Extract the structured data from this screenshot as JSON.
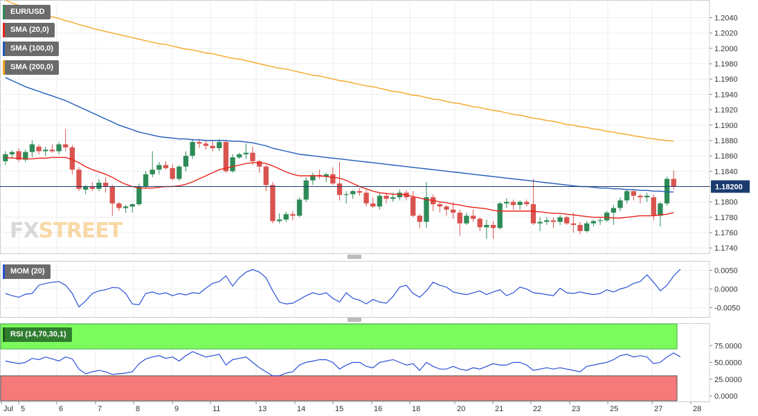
{
  "chart_data": {
    "type": "candlestick",
    "title": "EUR/USD",
    "ylim": [
      1.1733,
      1.2063
    ],
    "y_ticks": [
      "1.1740",
      "1.1760",
      "1.1780",
      "1.1800",
      "1.1820",
      "1.1840",
      "1.1860",
      "1.1880",
      "1.1900",
      "1.1920",
      "1.1940",
      "1.1960",
      "1.1980",
      "1.2000",
      "1.2020",
      "1.2040"
    ],
    "current_price": "1.18200",
    "x_tick_labels": [
      "Jul",
      "5",
      "6",
      "7",
      "8",
      "9",
      "11",
      "13",
      "14",
      "15",
      "16",
      "18",
      "20",
      "21",
      "22",
      "23",
      "25",
      "27",
      "28"
    ],
    "candles": [
      [
        1.1853,
        1.1866,
        1.1848,
        1.1862
      ],
      [
        1.1862,
        1.1867,
        1.1857,
        1.1865
      ],
      [
        1.1866,
        1.187,
        1.1852,
        1.1855
      ],
      [
        1.1855,
        1.1868,
        1.1852,
        1.1865
      ],
      [
        1.1865,
        1.188,
        1.1858,
        1.1875
      ],
      [
        1.1872,
        1.1875,
        1.1862,
        1.1866
      ],
      [
        1.1866,
        1.1872,
        1.186,
        1.1868
      ],
      [
        1.1868,
        1.1875,
        1.1864,
        1.1866
      ],
      [
        1.1866,
        1.1878,
        1.1862,
        1.1875
      ],
      [
        1.1875,
        1.1895,
        1.1866,
        1.1871
      ],
      [
        1.1871,
        1.1874,
        1.1836,
        1.1842
      ],
      [
        1.1842,
        1.1845,
        1.1814,
        1.1817
      ],
      [
        1.1816,
        1.1822,
        1.181,
        1.182
      ],
      [
        1.182,
        1.1826,
        1.1814,
        1.1817
      ],
      [
        1.1817,
        1.183,
        1.1814,
        1.1825
      ],
      [
        1.1825,
        1.1832,
        1.1812,
        1.182
      ],
      [
        1.182,
        1.1822,
        1.1782,
        1.1798
      ],
      [
        1.1798,
        1.18,
        1.1788,
        1.1792
      ],
      [
        1.1792,
        1.1796,
        1.1786,
        1.1794
      ],
      [
        1.1794,
        1.1798,
        1.1786,
        1.1797
      ],
      [
        1.1797,
        1.1824,
        1.1795,
        1.182
      ],
      [
        1.182,
        1.184,
        1.1817,
        1.1836
      ],
      [
        1.1836,
        1.1866,
        1.1832,
        1.1842
      ],
      [
        1.1842,
        1.1852,
        1.1836,
        1.1848
      ],
      [
        1.1848,
        1.1853,
        1.1842,
        1.1844
      ],
      [
        1.1844,
        1.1849,
        1.1828,
        1.183
      ],
      [
        1.183,
        1.1848,
        1.1827,
        1.1846
      ],
      [
        1.1846,
        1.1866,
        1.184,
        1.186
      ],
      [
        1.186,
        1.1882,
        1.1856,
        1.1878
      ],
      [
        1.1878,
        1.1882,
        1.187,
        1.1876
      ],
      [
        1.1876,
        1.188,
        1.1868,
        1.1873
      ],
      [
        1.1873,
        1.188,
        1.1866,
        1.187
      ],
      [
        1.187,
        1.1882,
        1.1866,
        1.1878
      ],
      [
        1.1878,
        1.188,
        1.1838,
        1.184
      ],
      [
        1.184,
        1.1862,
        1.1838,
        1.1858
      ],
      [
        1.1858,
        1.1864,
        1.1856,
        1.1862
      ],
      [
        1.1862,
        1.1876,
        1.1856,
        1.1864
      ],
      [
        1.1864,
        1.1872,
        1.1848,
        1.1853
      ],
      [
        1.1853,
        1.1855,
        1.1838,
        1.1846
      ],
      [
        1.1846,
        1.1848,
        1.1814,
        1.1822
      ],
      [
        1.1822,
        1.1826,
        1.1772,
        1.1775
      ],
      [
        1.1775,
        1.1785,
        1.1772,
        1.1777
      ],
      [
        1.1777,
        1.1787,
        1.1774,
        1.1784
      ],
      [
        1.1784,
        1.1788,
        1.1776,
        1.1782
      ],
      [
        1.1782,
        1.1806,
        1.178,
        1.1803
      ],
      [
        1.1803,
        1.1832,
        1.18,
        1.1828
      ],
      [
        1.1828,
        1.1838,
        1.1822,
        1.1835
      ],
      [
        1.1835,
        1.1842,
        1.183,
        1.1833
      ],
      [
        1.1833,
        1.1838,
        1.1826,
        1.1836
      ],
      [
        1.1836,
        1.1845,
        1.1822,
        1.1824
      ],
      [
        1.1824,
        1.1852,
        1.1802,
        1.1809
      ],
      [
        1.1809,
        1.1814,
        1.1798,
        1.181
      ],
      [
        1.181,
        1.1816,
        1.1804,
        1.1814
      ],
      [
        1.1814,
        1.1818,
        1.1808,
        1.1812
      ],
      [
        1.1812,
        1.1816,
        1.1794,
        1.1798
      ],
      [
        1.1798,
        1.1806,
        1.1792,
        1.1794
      ],
      [
        1.1794,
        1.1812,
        1.179,
        1.1808
      ],
      [
        1.1808,
        1.1812,
        1.1798,
        1.1804
      ],
      [
        1.1804,
        1.1812,
        1.18,
        1.1806
      ],
      [
        1.1806,
        1.1816,
        1.1802,
        1.1812
      ],
      [
        1.1812,
        1.1815,
        1.1802,
        1.1806
      ],
      [
        1.1806,
        1.1814,
        1.178,
        1.1782
      ],
      [
        1.1782,
        1.1784,
        1.1766,
        1.1774
      ],
      [
        1.1774,
        1.1826,
        1.1766,
        1.1806
      ],
      [
        1.1806,
        1.181,
        1.1788,
        1.1797
      ],
      [
        1.1797,
        1.18,
        1.1786,
        1.1794
      ],
      [
        1.1794,
        1.1796,
        1.1782,
        1.179
      ],
      [
        1.179,
        1.18,
        1.1778,
        1.1786
      ],
      [
        1.1786,
        1.179,
        1.1756,
        1.1772
      ],
      [
        1.1772,
        1.1786,
        1.177,
        1.1782
      ],
      [
        1.1782,
        1.179,
        1.1774,
        1.1778
      ],
      [
        1.1778,
        1.178,
        1.1762,
        1.1767
      ],
      [
        1.1767,
        1.1777,
        1.1752,
        1.177
      ],
      [
        1.177,
        1.1775,
        1.1752,
        1.1766
      ],
      [
        1.1766,
        1.18,
        1.1764,
        1.1798
      ],
      [
        1.1798,
        1.1805,
        1.1792,
        1.18
      ],
      [
        1.18,
        1.1803,
        1.179,
        1.1796
      ],
      [
        1.1796,
        1.1802,
        1.179,
        1.18
      ],
      [
        1.18,
        1.1803,
        1.1794,
        1.1797
      ],
      [
        1.1797,
        1.183,
        1.177,
        1.1772
      ],
      [
        1.1772,
        1.178,
        1.1762,
        1.1774
      ],
      [
        1.1774,
        1.178,
        1.177,
        1.1776
      ],
      [
        1.1776,
        1.178,
        1.1766,
        1.1774
      ],
      [
        1.1774,
        1.1783,
        1.177,
        1.178
      ],
      [
        1.178,
        1.1782,
        1.177,
        1.1772
      ],
      [
        1.1772,
        1.1786,
        1.176,
        1.177
      ],
      [
        1.177,
        1.1774,
        1.1758,
        1.1762
      ],
      [
        1.1762,
        1.1775,
        1.176,
        1.1772
      ],
      [
        1.1772,
        1.1777,
        1.1768,
        1.1775
      ],
      [
        1.1775,
        1.178,
        1.177,
        1.1776
      ],
      [
        1.1776,
        1.1788,
        1.1774,
        1.1786
      ],
      [
        1.1786,
        1.1796,
        1.177,
        1.1792
      ],
      [
        1.1792,
        1.1806,
        1.1788,
        1.1802
      ],
      [
        1.1802,
        1.1817,
        1.1798,
        1.1814
      ],
      [
        1.1814,
        1.1816,
        1.1802,
        1.1808
      ],
      [
        1.1808,
        1.181,
        1.1798,
        1.1806
      ],
      [
        1.1806,
        1.1812,
        1.18,
        1.1808
      ],
      [
        1.1806,
        1.181,
        1.1776,
        1.1782
      ],
      [
        1.1782,
        1.18,
        1.1768,
        1.1798
      ],
      [
        1.1798,
        1.1833,
        1.1795,
        1.183
      ],
      [
        1.183,
        1.1841,
        1.1816,
        1.182
      ]
    ],
    "series": [
      {
        "name": "SMA (20,0)",
        "values": [
          1.1858,
          1.1857,
          1.1857,
          1.1856,
          1.1856,
          1.1857,
          1.1857,
          1.1858,
          1.1858,
          1.1858,
          1.1855,
          1.1851,
          1.1846,
          1.1842,
          1.1839,
          1.1836,
          1.1832,
          1.1827,
          1.1823,
          1.182,
          1.1818,
          1.1818,
          1.1818,
          1.1819,
          1.182,
          1.182,
          1.1821,
          1.1823,
          1.1826,
          1.183,
          1.1834,
          1.1838,
          1.1842,
          1.1844,
          1.1846,
          1.1848,
          1.185,
          1.1851,
          1.1851,
          1.185,
          1.1847,
          1.1843,
          1.1839,
          1.1836,
          1.1834,
          1.1834,
          1.1834,
          1.1834,
          1.1833,
          1.1832,
          1.1831,
          1.1828,
          1.1824,
          1.182,
          1.1817,
          1.1814,
          1.1812,
          1.1811,
          1.181,
          1.181,
          1.1809,
          1.1807,
          1.1805,
          1.1803,
          1.1802,
          1.18,
          1.1799,
          1.1797,
          1.1796,
          1.1794,
          1.1793,
          1.1792,
          1.1791,
          1.1789,
          1.1788,
          1.1788,
          1.1788,
          1.1788,
          1.1788,
          1.1788,
          1.1787,
          1.1786,
          1.1785,
          1.1785,
          1.1784,
          1.1783,
          1.1782,
          1.1781,
          1.178,
          1.178,
          1.178,
          1.1779,
          1.1779,
          1.178,
          1.1781,
          1.1782,
          1.1782,
          1.1782,
          1.1783,
          1.1784,
          1.1786
        ]
      },
      {
        "name": "SMA (100,0)",
        "values": [
          1.1962,
          1.1958,
          1.1954,
          1.195,
          1.1947,
          1.1944,
          1.1941,
          1.1938,
          1.1935,
          1.1932,
          1.1928,
          1.1924,
          1.192,
          1.1916,
          1.1912,
          1.1908,
          1.1904,
          1.19,
          1.1897,
          1.1894,
          1.1891,
          1.1889,
          1.1887,
          1.1885,
          1.1884,
          1.1883,
          1.1882,
          1.1882,
          1.1881,
          1.1881,
          1.188,
          1.188,
          1.188,
          1.188,
          1.1879,
          1.1879,
          1.1878,
          1.1877,
          1.1875,
          1.1873,
          1.187,
          1.1868,
          1.1866,
          1.1864,
          1.1862,
          1.1861,
          1.186,
          1.1859,
          1.1858,
          1.1857,
          1.1856,
          1.1855,
          1.1854,
          1.1853,
          1.1852,
          1.1851,
          1.185,
          1.1849,
          1.1848,
          1.1847,
          1.1846,
          1.1845,
          1.1844,
          1.1843,
          1.1842,
          1.1841,
          1.184,
          1.1839,
          1.1838,
          1.1837,
          1.1836,
          1.1835,
          1.1834,
          1.1833,
          1.1832,
          1.1831,
          1.183,
          1.1829,
          1.1828,
          1.1827,
          1.1826,
          1.1825,
          1.1824,
          1.1823,
          1.1822,
          1.1821,
          1.182,
          1.182,
          1.1819,
          1.1818,
          1.1818,
          1.1817,
          1.1817,
          1.1816,
          1.1816,
          1.1815,
          1.1815,
          1.1814,
          1.1814,
          1.1813,
          1.1813
        ]
      },
      {
        "name": "SMA (200,0)",
        "values": [
          1.2063,
          1.2059,
          1.2056,
          1.2053,
          1.205,
          1.2047,
          1.2044,
          1.2041,
          1.2039,
          1.2036,
          1.2034,
          1.2031,
          1.2029,
          1.2026,
          1.2024,
          1.2022,
          1.202,
          1.2018,
          1.2016,
          1.2014,
          1.2012,
          1.201,
          1.2008,
          1.2006,
          1.2005,
          1.2003,
          1.2001,
          1.1999,
          1.1998,
          1.1996,
          1.1994,
          1.1993,
          1.1991,
          1.1989,
          1.1987,
          1.1986,
          1.1984,
          1.1982,
          1.198,
          1.1978,
          1.1976,
          1.1974,
          1.1973,
          1.1971,
          1.1969,
          1.1967,
          1.1965,
          1.1964,
          1.1962,
          1.196,
          1.1958,
          1.1957,
          1.1955,
          1.1953,
          1.1951,
          1.195,
          1.1948,
          1.1946,
          1.1944,
          1.1943,
          1.1941,
          1.1939,
          1.1938,
          1.1936,
          1.1934,
          1.1933,
          1.1931,
          1.1929,
          1.1928,
          1.1926,
          1.1924,
          1.1923,
          1.1921,
          1.1919,
          1.1918,
          1.1916,
          1.1914,
          1.1913,
          1.1911,
          1.1909,
          1.1908,
          1.1906,
          1.1905,
          1.1903,
          1.1901,
          1.19,
          1.1898,
          1.1897,
          1.1895,
          1.1894,
          1.1892,
          1.1891,
          1.1889,
          1.1888,
          1.1886,
          1.1885,
          1.1883,
          1.1882,
          1.1881,
          1.188,
          1.1879
        ]
      }
    ],
    "colors": {
      "up": "#2e8b57",
      "down": "#d9534f",
      "sma20": "#e8241c",
      "sma100": "#1f5bb8",
      "sma200": "#f5a623",
      "mom": "#2a4fd6",
      "rsi": "#2a4fd6",
      "price_line": "#1a3b6e"
    },
    "mom": {
      "label": "MOM (20)",
      "ylim": [
        -0.0075,
        0.0075
      ],
      "y_ticks": [
        "-0.0050",
        "0.0000",
        "0.0050"
      ],
      "values": [
        -0.0012,
        -0.0018,
        -0.0022,
        -0.0014,
        -0.0012,
        0.001,
        0.0015,
        0.0018,
        0.002,
        0.001,
        -0.0012,
        -0.0048,
        -0.0032,
        -0.0012,
        -0.0005,
        -0.0002,
        0.0004,
        0.0003,
        -0.0012,
        -0.004,
        -0.0042,
        -0.0012,
        -0.0008,
        -0.0014,
        -0.001,
        -0.0018,
        -0.0012,
        -0.0016,
        -0.001,
        -0.0012,
        0.0002,
        0.0015,
        0.002,
        0.0035,
        0.0008,
        0.003,
        0.0045,
        0.0052,
        0.0045,
        0.003,
        -0.0005,
        -0.0035,
        -0.004,
        -0.0038,
        -0.0028,
        -0.0018,
        -0.001,
        -0.0015,
        -0.001,
        -0.0025,
        -0.0035,
        -0.001,
        -0.0025,
        -0.003,
        -0.004,
        -0.0028,
        -0.0035,
        -0.0038,
        -0.002,
        0.0005,
        0.001,
        -0.0012,
        -0.0022,
        -0.0005,
        0.0018,
        0.001,
        0.0005,
        -0.0008,
        -0.0012,
        -0.0015,
        -0.001,
        -0.0005,
        -0.0015,
        -0.0008,
        -0.0002,
        -0.0018,
        -0.001,
        0.0005,
        0.0,
        -0.001,
        -0.0012,
        -0.0015,
        -0.0018,
        0.0002,
        -0.001,
        -0.0012,
        -0.0008,
        -0.0012,
        -0.0015,
        -0.0012,
        -0.0002,
        -0.0008,
        0.0,
        0.0005,
        0.0015,
        0.002,
        0.0038,
        0.0018,
        -0.0005,
        0.001,
        0.0035,
        0.0053
      ]
    },
    "rsi": {
      "label": "RSI (14,70,30,1)",
      "ylim": [
        0,
        100
      ],
      "y_ticks": [
        "0.0000",
        "25.0000",
        "50.0000",
        "75.0000"
      ],
      "overbought": 70,
      "oversold": 30,
      "values": [
        52,
        50,
        48,
        50,
        56,
        54,
        58,
        55,
        52,
        58,
        55,
        40,
        33,
        36,
        38,
        36,
        32,
        33,
        34,
        36,
        48,
        55,
        58,
        60,
        56,
        58,
        52,
        60,
        66,
        62,
        58,
        60,
        62,
        46,
        54,
        56,
        58,
        50,
        42,
        36,
        30,
        30,
        34,
        36,
        46,
        50,
        52,
        54,
        54,
        50,
        40,
        46,
        50,
        50,
        44,
        42,
        50,
        52,
        54,
        50,
        46,
        48,
        38,
        50,
        44,
        40,
        40,
        44,
        40,
        38,
        42,
        40,
        44,
        48,
        46,
        46,
        50,
        50,
        46,
        38,
        40,
        42,
        40,
        42,
        40,
        38,
        36,
        44,
        46,
        48,
        50,
        54,
        60,
        62,
        58,
        60,
        58,
        48,
        50,
        58,
        64,
        58
      ]
    }
  }
}
